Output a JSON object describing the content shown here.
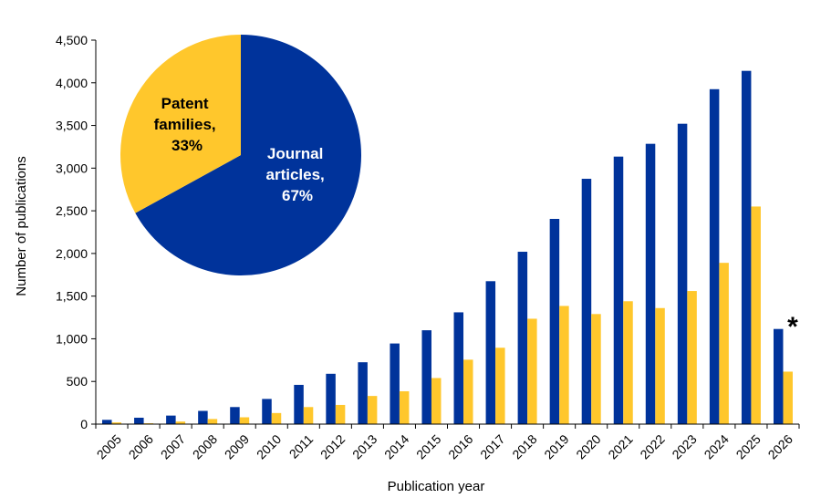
{
  "chart_data": [
    {
      "type": "bar",
      "categories": [
        "2005",
        "2006",
        "2007",
        "2008",
        "2009",
        "2010",
        "2011",
        "2012",
        "2013",
        "2014",
        "2015",
        "2016",
        "2017",
        "2018",
        "2019",
        "2020",
        "2021",
        "2022",
        "2023",
        "2024",
        "2025",
        "2026"
      ],
      "series": [
        {
          "values": [
            50,
            75,
            100,
            155,
            200,
            295,
            460,
            590,
            725,
            945,
            1100,
            1310,
            1675,
            2020,
            2405,
            2875,
            3135,
            3285,
            3520,
            3925,
            4140,
            1115
          ],
          "color": "#00339b"
        },
        {
          "values": [
            20,
            10,
            30,
            60,
            80,
            130,
            200,
            225,
            330,
            385,
            540,
            755,
            895,
            1235,
            1385,
            1290,
            1440,
            1360,
            1560,
            1890,
            2550,
            615
          ],
          "color": "#ffc72c"
        }
      ],
      "xlabel": "Publication year",
      "ylabel": "Number of publications",
      "ylim": [
        0,
        4500
      ],
      "yticks": [
        0,
        500,
        1000,
        1500,
        2000,
        2500,
        3000,
        3500,
        4000,
        4500
      ],
      "ytick_labels": [
        "0",
        "500",
        "1,000",
        "1,500",
        "2,000",
        "2,500",
        "3,000",
        "3,500",
        "4,000",
        "4,500"
      ],
      "grid": false,
      "annotation": "*"
    },
    {
      "type": "pie",
      "slices": [
        {
          "label_line1": "Journal",
          "label_line2": "articles,",
          "label_line3": "67%",
          "value": 67,
          "color": "#00339b",
          "label_color": "#ffffff"
        },
        {
          "label_line1": "Patent",
          "label_line2": "families,",
          "label_line3": "33%",
          "value": 33,
          "color": "#ffc72c",
          "label_color": "#000000"
        }
      ]
    }
  ]
}
